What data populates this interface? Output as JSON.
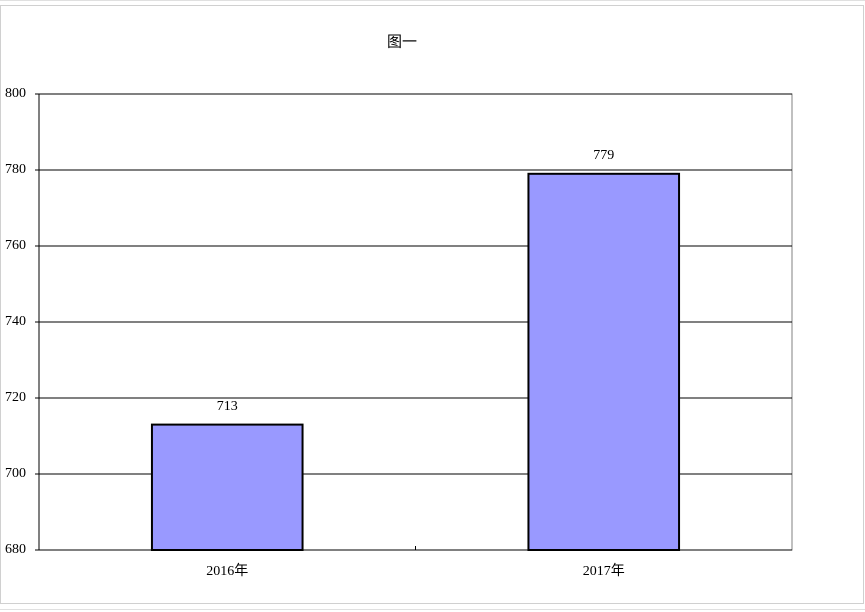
{
  "chart_data": {
    "type": "bar",
    "title": "图一",
    "categories": [
      "2016年",
      "2017年"
    ],
    "values": [
      713,
      779
    ],
    "color": "#9999ff",
    "ylim": [
      680,
      800
    ],
    "yticks": [
      680,
      700,
      720,
      740,
      760,
      780,
      800
    ],
    "grid": true
  }
}
